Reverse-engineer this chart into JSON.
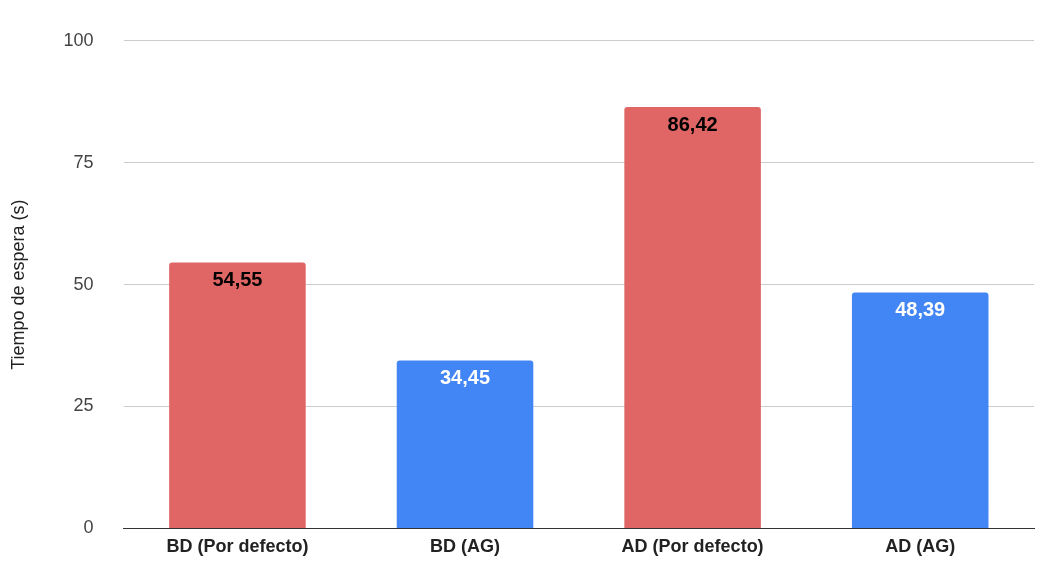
{
  "chart_data": {
    "type": "bar",
    "ylabel": "Tiempo de espera (s)",
    "categories": [
      "BD (Por defecto)",
      "BD (AG)",
      "AD (Por defecto)",
      "AD (AG)"
    ],
    "values": [
      54.55,
      34.45,
      86.42,
      48.39
    ],
    "colors": [
      "#e06666",
      "#4285f4",
      "#e06666",
      "#4285f4"
    ],
    "value_labels": [
      "54,55",
      "34,45",
      "86,42",
      "48,39"
    ],
    "ylim": [
      0,
      100
    ],
    "yticks": [
      0,
      25,
      50,
      75,
      100
    ],
    "grid": "y",
    "legend": false
  }
}
